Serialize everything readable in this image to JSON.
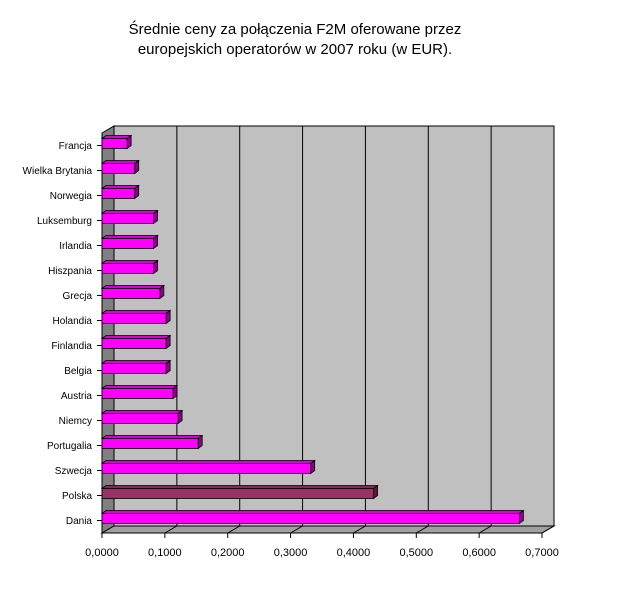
{
  "chart_data": {
    "type": "bar",
    "orientation": "horizontal",
    "title_lines": [
      "Średnie ceny za połączenia F2M oferowane przez",
      "europejskich operatorów w 2007 roku (w EUR)."
    ],
    "categories": [
      "Dania",
      "Polska",
      "Szwecja",
      "Portugalia",
      "Niemcy",
      "Austria",
      "Belgia",
      "Finlandia",
      "Holandia",
      "Grecja",
      "Hiszpania",
      "Irlandia",
      "Luksemburg",
      "Norwegia",
      "Wielka Brytania",
      "Francja"
    ],
    "values": [
      0.664,
      0.432,
      0.332,
      0.153,
      0.121,
      0.113,
      0.102,
      0.102,
      0.102,
      0.092,
      0.082,
      0.082,
      0.082,
      0.052,
      0.052,
      0.04
    ],
    "tick_labels": [
      "0,0000",
      "0,1000",
      "0,2000",
      "0,3000",
      "0,4000",
      "0,5000",
      "0,6000",
      "0,7000"
    ],
    "xlim": [
      0,
      0.7
    ],
    "bar_color": "#ff00ff",
    "highlight_category": "Polska",
    "highlight_color": "#993366",
    "plot_background": "#c0c0c0",
    "grid": true
  }
}
